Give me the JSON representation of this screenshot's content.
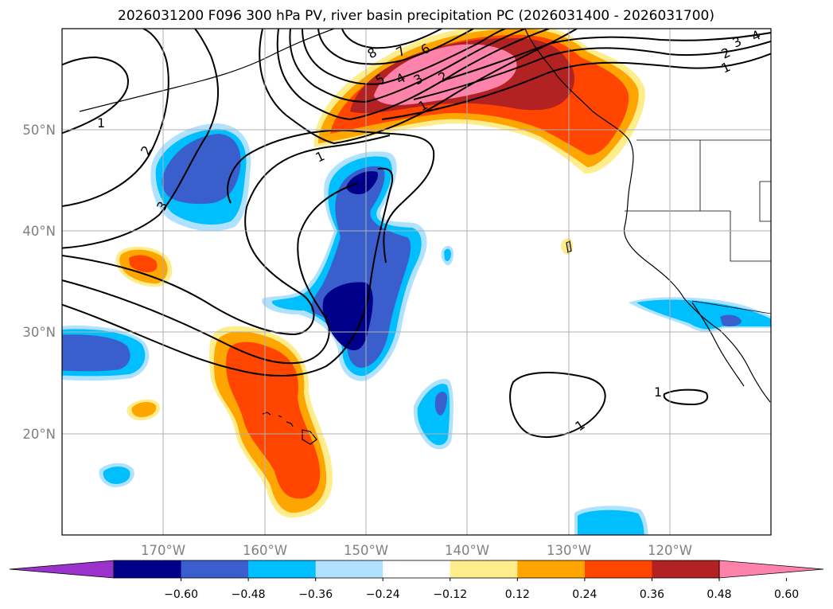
{
  "title": "2026031200 F096 300 hPa PV, river basin precipitation PC (2026031400 - 2026031700)",
  "axes": {
    "lon_labels": [
      "170°W",
      "160°W",
      "150°W",
      "140°W",
      "130°W",
      "120°W"
    ],
    "lat_labels": [
      "50°N",
      "40°N",
      "30°N",
      "20°N"
    ]
  },
  "colorbar": {
    "ticks": [
      "-0.60",
      "-0.48",
      "-0.36",
      "-0.24",
      "-0.12",
      "0.12",
      "0.24",
      "0.36",
      "0.48",
      "0.60"
    ],
    "colors": [
      "#9933cc",
      "#00008b",
      "#3a5fcd",
      "#00bfff",
      "#b0e2ff",
      "#ffffff",
      "#ffec8b",
      "#ffa500",
      "#ff4500",
      "#b22222",
      "#ff82ab"
    ]
  },
  "pv_contour_labels": [
    "8",
    "7",
    "6",
    "5",
    "4",
    "3",
    "2",
    "1",
    "1",
    "2",
    "3",
    "1",
    "1",
    "1",
    "3",
    "2",
    "4",
    "1"
  ]
}
